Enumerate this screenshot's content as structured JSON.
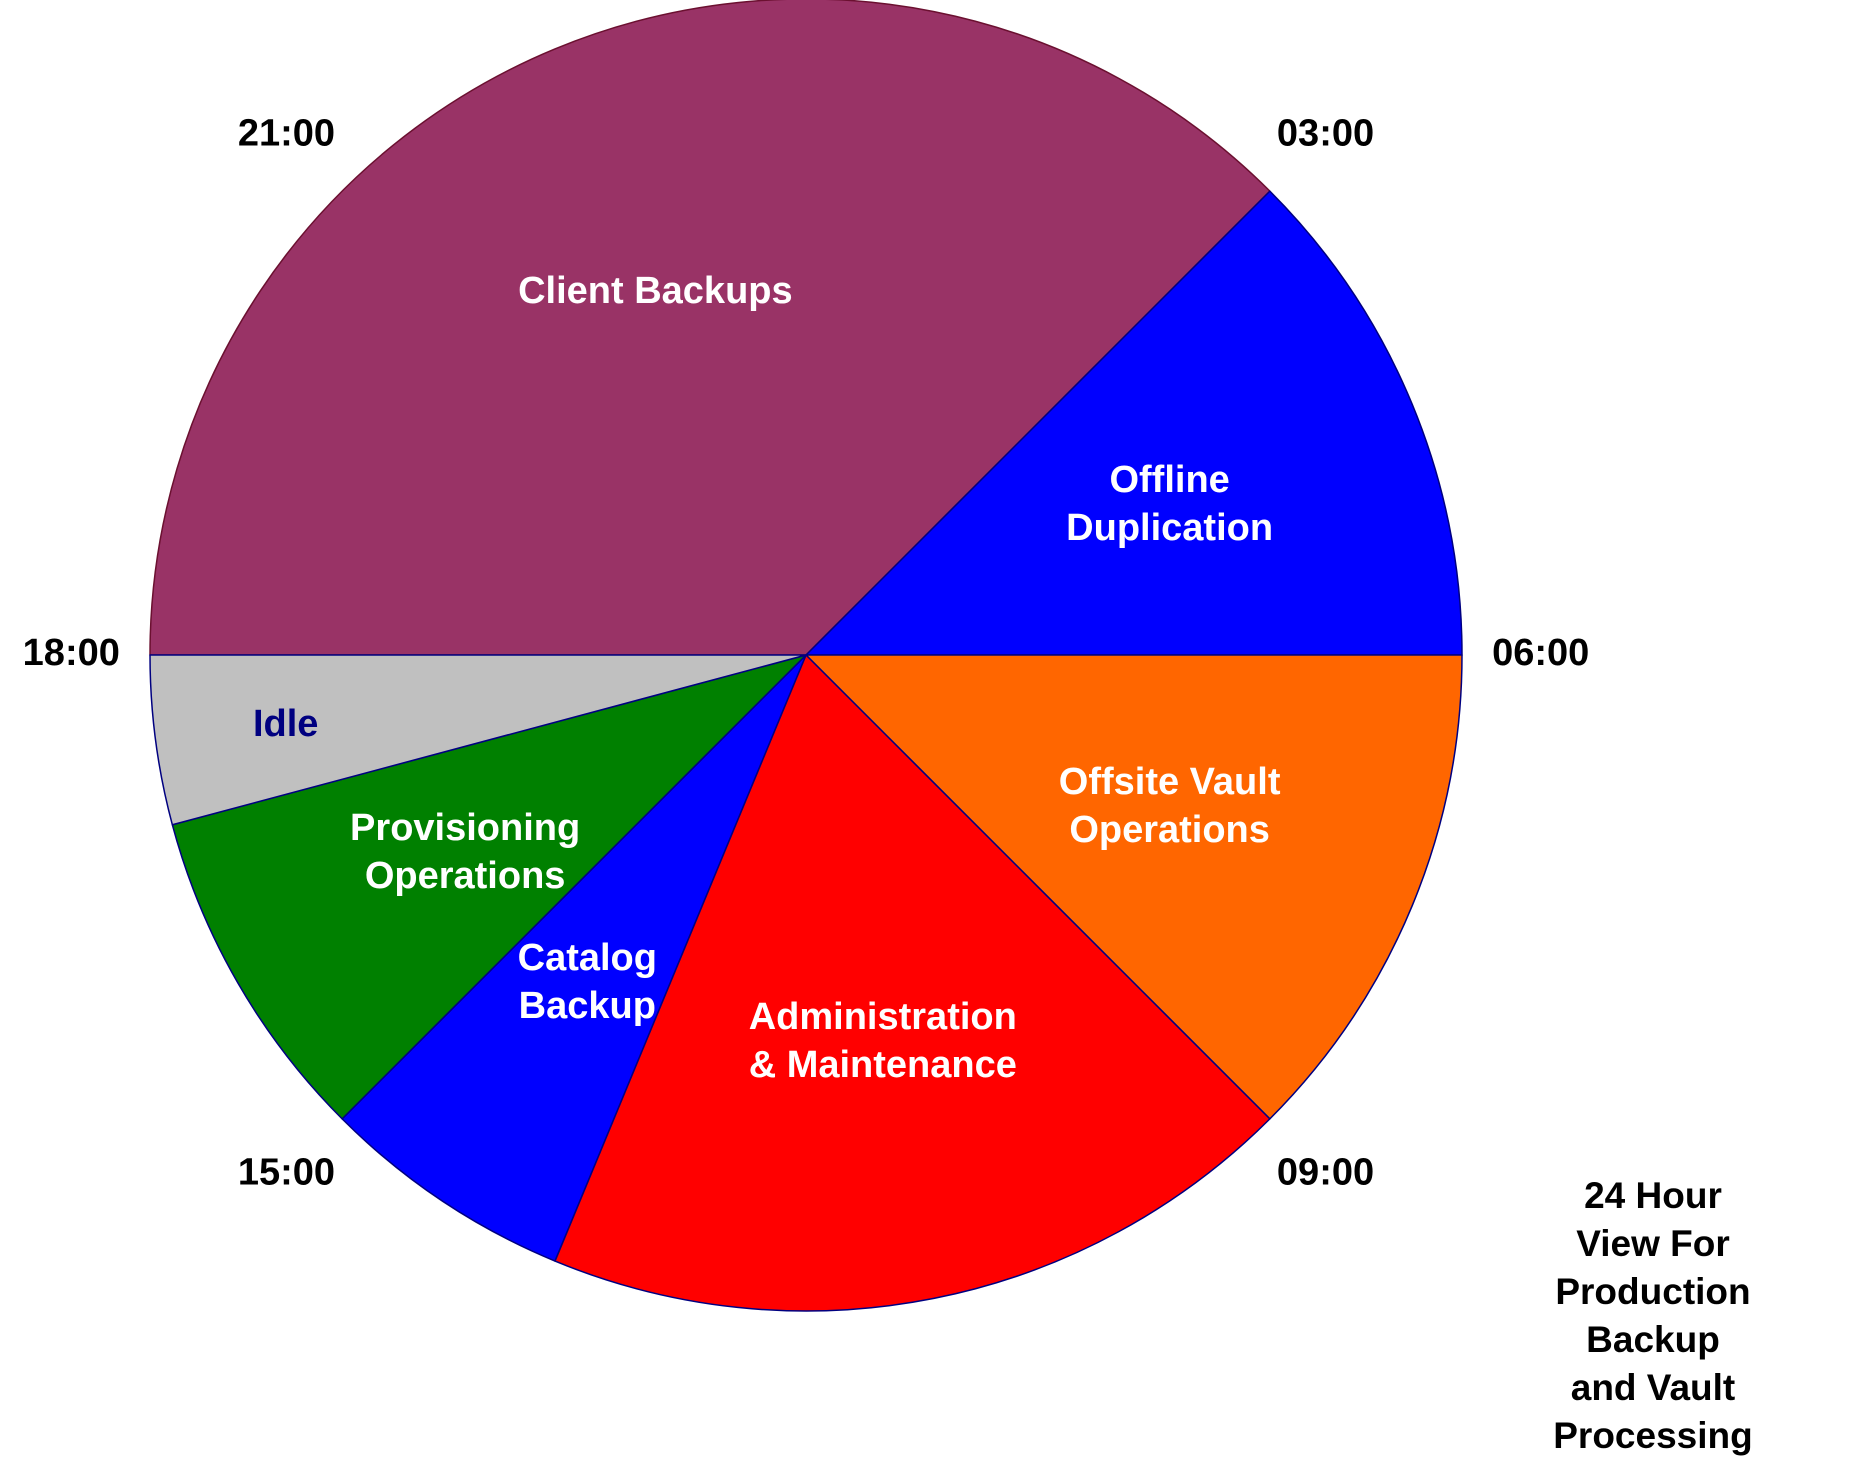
{
  "chart_data": {
    "type": "pie",
    "title": "24 Hour View For\nProduction Backup\nand Vault Processing",
    "categories": [
      "Client Backups",
      "Offline\nDuplication",
      "Offsite Vault\nOperations",
      "Administration\n& Maintenance",
      "Catalog\nBackup",
      "Provisioning\nOperations",
      "Idle"
    ],
    "values": [
      9,
      3,
      3,
      4.5,
      1.5,
      2,
      1
    ],
    "colors": [
      "#993366",
      "#0000ff",
      "#ff6600",
      "#ff0000",
      "#0000ff",
      "#008000",
      "#c0c0c0"
    ],
    "label_colors": [
      "#ffffff",
      "#ffffff",
      "#ffffff",
      "#ffffff",
      "#ffffff",
      "#ffffff",
      "#000080"
    ],
    "ticks": [
      {
        "value": 21,
        "label": "21:00"
      },
      {
        "value": 3,
        "label": "03:00"
      },
      {
        "value": 6,
        "label": "06:00"
      },
      {
        "value": 9,
        "label": "09:00"
      },
      {
        "value": 15,
        "label": "15:00"
      },
      {
        "value": 18,
        "label": "18:00"
      }
    ]
  }
}
